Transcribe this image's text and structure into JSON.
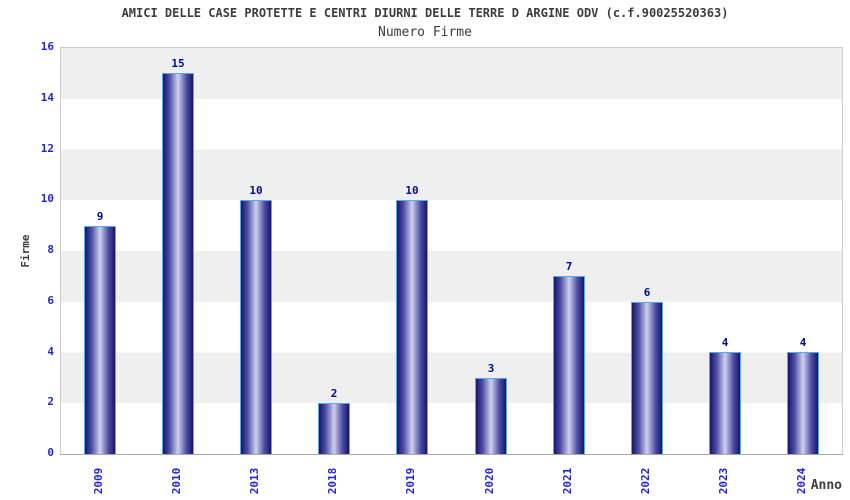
{
  "header": {
    "title": "AMICI DELLE CASE PROTETTE E CENTRI DIURNI DELLE TERRE D ARGINE ODV (c.f.90025520363)",
    "subtitle": "Numero Firme"
  },
  "chart_data": {
    "type": "bar",
    "title": "AMICI DELLE CASE PROTETTE E CENTRI DIURNI DELLE TERRE D ARGINE ODV (c.f.90025520363)",
    "subtitle": "Numero Firme",
    "categories": [
      "2009",
      "2010",
      "2013",
      "2018",
      "2019",
      "2020",
      "2021",
      "2022",
      "2023",
      "2024"
    ],
    "values": [
      9,
      15,
      10,
      2,
      10,
      3,
      7,
      6,
      4,
      4
    ],
    "xlabel": "Anno",
    "ylabel": "Firme",
    "ylim": [
      0,
      16
    ],
    "yticks": [
      0,
      2,
      4,
      6,
      8,
      10,
      12,
      14,
      16
    ],
    "grid": "alternating horizontal bands every 2 units",
    "legend": "none",
    "colors": {
      "text_dark": "#3d3d3d",
      "tick_label": "#2525cf",
      "value_label": "#000d8a",
      "bar_edge": "#15156b",
      "bar_mid": "#4e4ea4",
      "bar_center": "#cdd1ee",
      "bar_border": "#5aa8ea",
      "band_gray": "#efefef",
      "plot_border": "#cccccc"
    }
  }
}
